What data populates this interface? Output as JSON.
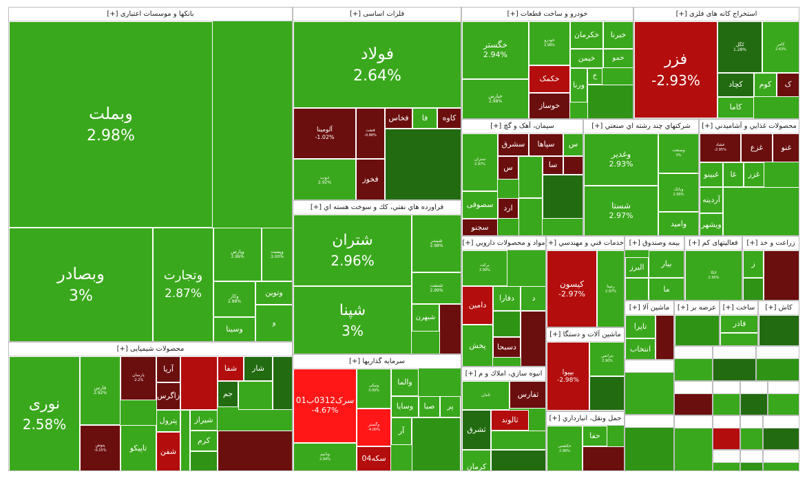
{
  "chart_data": {
    "type": "treemap",
    "colors": {
      "strong_green": "#3aa81c",
      "mid_green": "#2f9415",
      "dark_green": "#226b10",
      "dark_red": "#6b0e0e",
      "red": "#b30d0d",
      "bright_red": "#ff1717",
      "bright_green": "#4cf000"
    },
    "sectors": [
      {
        "name": "بانکها و موسسات اعتباری [+]",
        "items": [
          {
            "symbol": "وبملت",
            "change": "2.98%"
          },
          {
            "symbol": "وبصادر",
            "change": "3%"
          },
          {
            "symbol": "وتجارت",
            "change": "2.87%"
          },
          {
            "symbol": "وپارس",
            "change": "2.99%"
          },
          {
            "symbol": "وپست",
            "change": "3.00%"
          },
          {
            "symbol": "وتوین",
            "change": ""
          },
          {
            "symbol": "وکار",
            "change": "2.88%"
          },
          {
            "symbol": "وسینا",
            "change": ""
          },
          {
            "symbol": "و",
            "change": ""
          }
        ]
      },
      {
        "name": "فلزات اساسی [+]",
        "items": [
          {
            "symbol": "فولاد",
            "change": "2.64%"
          },
          {
            "symbol": "آلومینا",
            "change": "-1.02%"
          },
          {
            "symbol": "فنفت",
            "change": "-0.88%"
          },
          {
            "symbol": "فخاس",
            "change": ""
          },
          {
            "symbol": "فا",
            "change": ""
          },
          {
            "symbol": "کاوه",
            "change": ""
          },
          {
            "symbol": "ذوب",
            "change": "2.92%"
          },
          {
            "symbol": "فخوز",
            "change": ""
          }
        ]
      },
      {
        "name": "فراورده هاي نفتي، كك و سوخت هسته اي [+]",
        "items": [
          {
            "symbol": "شتران",
            "change": "2.96%"
          },
          {
            "symbol": "شبندر",
            "change": "2.98%"
          },
          {
            "symbol": "شپنا",
            "change": "3%"
          },
          {
            "symbol": "شنفت",
            "change": "2.99%"
          },
          {
            "symbol": "شبهرن",
            "change": ""
          }
        ]
      },
      {
        "name": "خودرو و ساخت قطعات [+]",
        "items": [
          {
            "symbol": "خگستر",
            "change": "2.94%"
          },
          {
            "symbol": "خپارس",
            "change": "2.98%"
          },
          {
            "symbol": "خکرمان",
            "change": ""
          },
          {
            "symbol": "خبرنا",
            "change": ""
          },
          {
            "symbol": "خمو",
            "change": ""
          },
          {
            "symbol": "خیمن",
            "change": ""
          },
          {
            "symbol": "خودرو",
            "change": "2.98%"
          },
          {
            "symbol": "خکمک",
            "change": ""
          },
          {
            "symbol": "خوساز",
            "change": ""
          },
          {
            "symbol": "ورنا",
            "change": ""
          },
          {
            "symbol": "خ",
            "change": ""
          }
        ]
      },
      {
        "name": "استخراج کانه های فلزی [+]",
        "items": [
          {
            "symbol": "فزر",
            "change": "-2.93%"
          },
          {
            "symbol": "کگل",
            "change": "1.28%"
          },
          {
            "symbol": "کچاد",
            "change": ""
          },
          {
            "symbol": "کامر",
            "change": "2.63%"
          },
          {
            "symbol": "کاما",
            "change": ""
          },
          {
            "symbol": "کوم",
            "change": ""
          },
          {
            "symbol": "ک",
            "change": ""
          }
        ]
      },
      {
        "name": "سیمان، آهک و گچ [+]",
        "items": [
          {
            "symbol": "ستران",
            "change": "2.97%"
          },
          {
            "symbol": "سشرق",
            "change": ""
          },
          {
            "symbol": "سپاها",
            "change": ""
          },
          {
            "symbol": "س",
            "change": ""
          },
          {
            "symbol": "سصوفی",
            "change": ""
          },
          {
            "symbol": "سجنو",
            "change": ""
          },
          {
            "symbol": "سا",
            "change": ""
          },
          {
            "symbol": "ارد",
            "change": ""
          }
        ]
      },
      {
        "name": "شرکتهاي چند رشته اي صنعتي [+]",
        "items": [
          {
            "symbol": "وغدیر",
            "change": "2.93%"
          },
          {
            "symbol": "شستا",
            "change": "2.97%"
          },
          {
            "symbol": "وصنعت",
            "change": "3%"
          },
          {
            "symbol": "وبانک",
            "change": "2.99%"
          },
          {
            "symbol": "وامید",
            "change": ""
          }
        ]
      },
      {
        "name": "محصولات غذايي و آشاميدني [+]",
        "items": [
          {
            "symbol": "غشاد",
            "change": "-2.95%"
          },
          {
            "symbol": "غزع",
            "change": ""
          },
          {
            "symbol": "غنو",
            "change": ""
          },
          {
            "symbol": "غبینو",
            "change": ""
          },
          {
            "symbol": "غا",
            "change": ""
          },
          {
            "symbol": "غزر",
            "change": ""
          },
          {
            "symbol": "آردینه",
            "change": ""
          },
          {
            "symbol": "ویشهر",
            "change": ""
          }
        ]
      },
      {
        "name": "مواد و محصولات دارويي [+]",
        "items": [
          {
            "symbol": "برکت",
            "change": "2.99%"
          },
          {
            "symbol": "دامین",
            "change": ""
          },
          {
            "symbol": "دفارا",
            "change": ""
          },
          {
            "symbol": "پخش",
            "change": ""
          },
          {
            "symbol": "دسبحا",
            "change": ""
          },
          {
            "symbol": "د",
            "change": ""
          }
        ]
      },
      {
        "name": "خدمات فني و مهندسي [+]",
        "items": [
          {
            "symbol": "کیسون",
            "change": "-2.97%"
          },
          {
            "symbol": "رمپنا",
            "change": "2.97%"
          }
        ]
      },
      {
        "name": "بیمه وصندوق [+]",
        "items": [
          {
            "symbol": "البرز",
            "change": ""
          },
          {
            "symbol": "بیار",
            "change": ""
          },
          {
            "symbol": "ما",
            "change": ""
          }
        ]
      },
      {
        "name": "فعالیتهای کم [+]",
        "items": [
          {
            "symbol": "اتکا",
            "change": "2.95%"
          }
        ]
      },
      {
        "name": "زراعت و خد [+]",
        "items": [
          {
            "symbol": "ز",
            "change": ""
          }
        ]
      },
      {
        "name": "سرمايه گذاريها [+]",
        "items": [
          {
            "symbol": "سرک0312ب01",
            "change": "-4.67%"
          },
          {
            "symbol": "ونیکی",
            "change": "3.00%"
          },
          {
            "symbol": "والما",
            "change": ""
          },
          {
            "symbol": "صبا",
            "change": ""
          },
          {
            "symbol": "وسایا",
            "change": ""
          },
          {
            "symbol": "پر",
            "change": ""
          },
          {
            "symbol": "آر",
            "change": ""
          },
          {
            "symbol": "وگستر",
            "change": "-4.00%"
          },
          {
            "symbol": "وبانیم",
            "change": "2.94%"
          },
          {
            "symbol": "سکه04",
            "change": ""
          }
        ]
      },
      {
        "name": "محصولات شیمیایی [+]",
        "items": [
          {
            "symbol": "نوری",
            "change": "2.58%"
          },
          {
            "symbol": "فارس",
            "change": "2.92%"
          },
          {
            "symbol": "پارسان",
            "change": "-2.2%"
          },
          {
            "symbol": "آریا",
            "change": ""
          },
          {
            "symbol": "زاگرس",
            "change": ""
          },
          {
            "symbol": "پترول",
            "change": ""
          },
          {
            "symbol": "شیراز",
            "change": ""
          },
          {
            "symbol": "شفا",
            "change": ""
          },
          {
            "symbol": "شار",
            "change": ""
          },
          {
            "symbol": "جم",
            "change": ""
          },
          {
            "symbol": "شفن",
            "change": ""
          },
          {
            "symbol": "تاپیکو",
            "change": ""
          },
          {
            "symbol": "پتوش",
            "change": "-0.15%"
          },
          {
            "symbol": "کرم",
            "change": ""
          }
        ]
      },
      {
        "name": "انبوه سازي، املاك و م [+]",
        "items": [
          {
            "symbol": "ثفارس",
            "change": ""
          },
          {
            "symbol": "ثشرق",
            "change": ""
          },
          {
            "symbol": "ثالوند",
            "change": ""
          },
          {
            "symbol": "کرمان",
            "change": ""
          },
          {
            "symbol": "ثامان",
            "change": ""
          }
        ]
      },
      {
        "name": "ماشین آلات و دستگا [+]",
        "items": [
          {
            "symbol": "بپیوا",
            "change": "-2.98%"
          },
          {
            "symbol": "بترانس",
            "change": "2.90%"
          }
        ]
      },
      {
        "name": "حمل ونقل، انبارداري [+]",
        "items": [
          {
            "symbol": "حکشتی",
            "change": "2.96%"
          },
          {
            "symbol": "حفا",
            "change": ""
          }
        ]
      },
      {
        "name": "ماشین آلا [+]",
        "items": [
          {
            "symbol": "تاپرا",
            "change": ""
          },
          {
            "symbol": "انتخاب",
            "change": ""
          }
        ]
      },
      {
        "name": "عرضه بر [+]",
        "items": []
      },
      {
        "name": "ساخت [+]",
        "items": [
          {
            "symbol": "فاذر",
            "change": ""
          }
        ]
      },
      {
        "name": "کاش [+]",
        "items": []
      }
    ]
  }
}
